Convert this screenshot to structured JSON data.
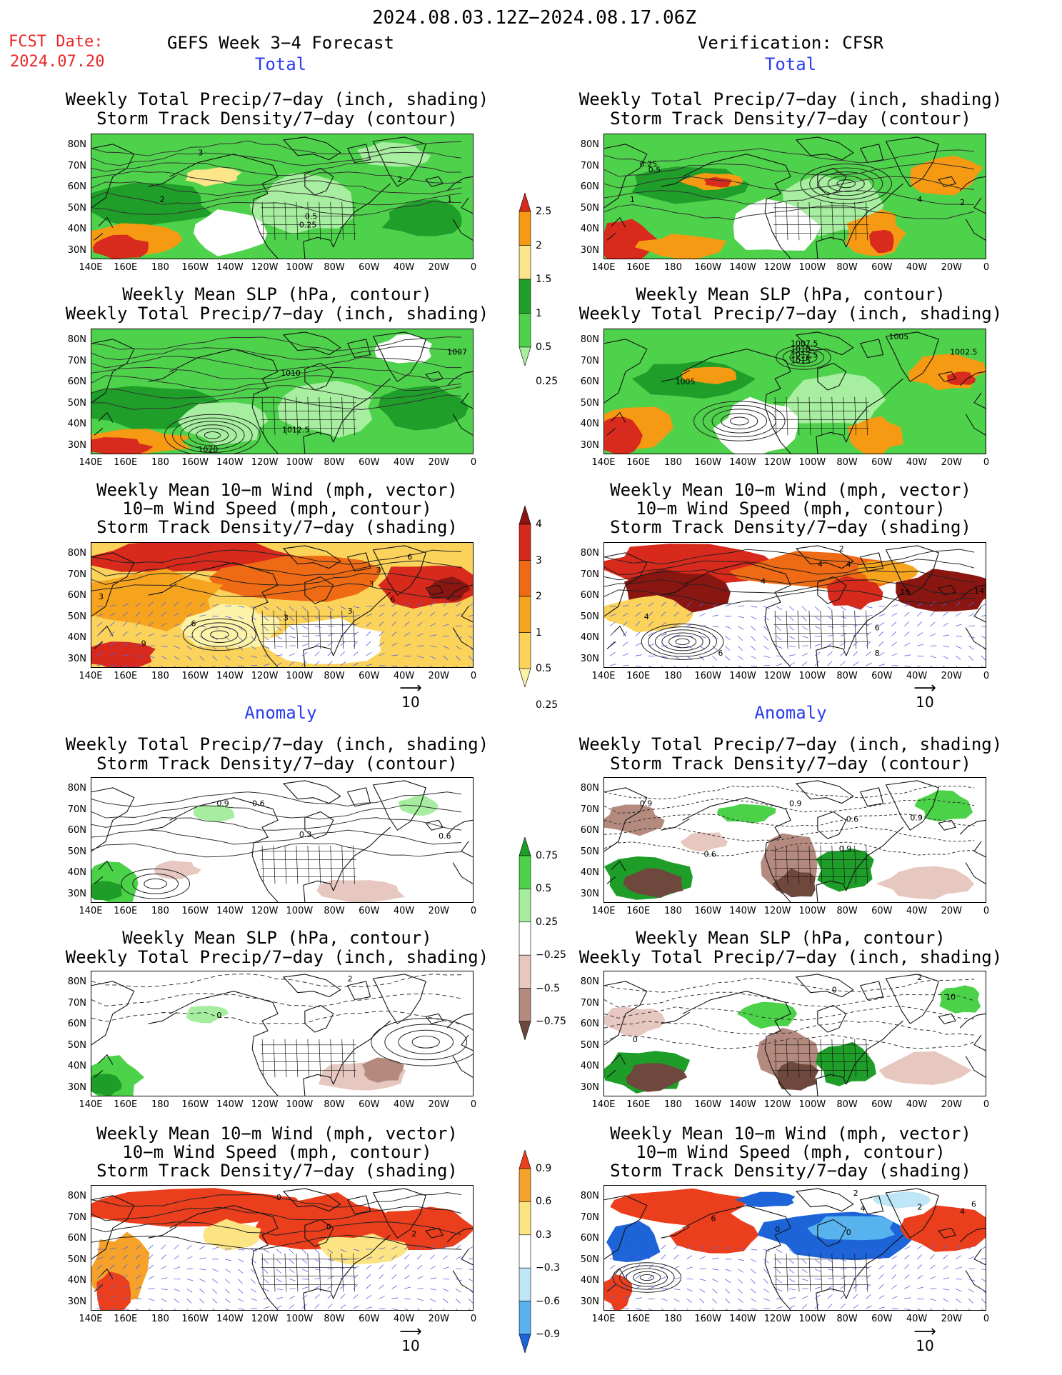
{
  "header": {
    "date_range": "2024.08.03.12Z−2024.08.17.06Z",
    "fcst_label": "FCST Date:",
    "fcst_date": "2024.07.20",
    "left_title": "GEFS Week 3−4 Forecast",
    "right_title": "Verification: CFSR"
  },
  "sections": {
    "total": "Total",
    "anomaly": "Anomaly"
  },
  "panel_titles": {
    "precip_storm": [
      "Weekly Total Precip/7−day (inch, shading)",
      "Storm Track Density/7−day (contour)"
    ],
    "slp_precip": [
      "Weekly Mean SLP (hPa, contour)",
      "Weekly Total Precip/7−day (inch, shading)"
    ],
    "wind_storm": [
      "Weekly Mean 10−m Wind (mph, vector)",
      "10−m Wind Speed (mph, contour)",
      "Storm Track Density/7−day (shading)"
    ]
  },
  "axes": {
    "lat_labels": [
      "80N",
      "70N",
      "60N",
      "50N",
      "40N",
      "30N"
    ],
    "lon_labels": [
      "140E",
      "160E",
      "180",
      "160W",
      "140W",
      "120W",
      "100W",
      "80W",
      "60W",
      "40W",
      "20W",
      "0"
    ]
  },
  "vector_ref": "10",
  "colorbars": {
    "precip_total": {
      "labels": [
        "2.5",
        "2",
        "1.5",
        "1",
        "0.5",
        "0.25"
      ],
      "colors": [
        "#d82b1e",
        "#f59a12",
        "#fde58a",
        "#1f9e2a",
        "#4fd24b",
        "#a7eea0"
      ]
    },
    "storm_total": {
      "labels": [
        "4",
        "3",
        "2",
        "1",
        "0.5",
        "0.25"
      ],
      "colors": [
        "#8a1612",
        "#d72a1c",
        "#ef6a14",
        "#f6a41e",
        "#fbd25a",
        "#fdf3a8"
      ]
    },
    "precip_anom": {
      "labels": [
        "0.75",
        "0.5",
        "0.25",
        "−0.25",
        "−0.5",
        "−0.75"
      ],
      "colors": [
        "#1e9e28",
        "#4bd248",
        "#a6eda0",
        "#ffffff",
        "#e7c8c0",
        "#b48a7e",
        "#6e473d"
      ]
    },
    "storm_anom": {
      "labels": [
        "0.9",
        "0.6",
        "0.3",
        "−0.3",
        "−0.6",
        "−0.9"
      ],
      "colors": [
        "#ea3e1c",
        "#f6a12a",
        "#fde482",
        "#ffffff",
        "#bfe6f6",
        "#58b2ee",
        "#1c64d8"
      ]
    }
  },
  "contour_labels": {
    "p1l": [
      "3",
      "2",
      "2",
      "1",
      "0.5",
      "0.25"
    ],
    "p1r": [
      "0.25",
      "0.5",
      "1",
      "4",
      "2"
    ],
    "p2l": [
      "1007",
      "1010",
      "1012.5",
      "1020"
    ],
    "p2r": [
      "1005",
      "1007.5",
      "1010",
      "1012.5",
      "1015",
      "1005",
      "1002.5"
    ],
    "p3l": [
      "3",
      "3",
      "6",
      "6",
      "3",
      "6",
      "3",
      "9",
      "3"
    ],
    "p3r": [
      "2",
      "4",
      "4",
      "4",
      "10",
      "14",
      "4",
      "6",
      "6",
      "8"
    ],
    "p4l": [
      "0.9",
      "0.6",
      "0.3",
      "0.6"
    ],
    "p4r": [
      "0.9",
      "0.9",
      "0.6",
      "0.9",
      "0.9",
      "0.6"
    ],
    "p5l": [
      "2",
      "0"
    ],
    "p5r": [
      "2",
      "0",
      "10",
      "0"
    ],
    "p6l": [
      "0",
      "0",
      "2"
    ],
    "p6r": [
      "2",
      "4",
      "6",
      "0",
      "0",
      "2",
      "4",
      "6"
    ]
  }
}
